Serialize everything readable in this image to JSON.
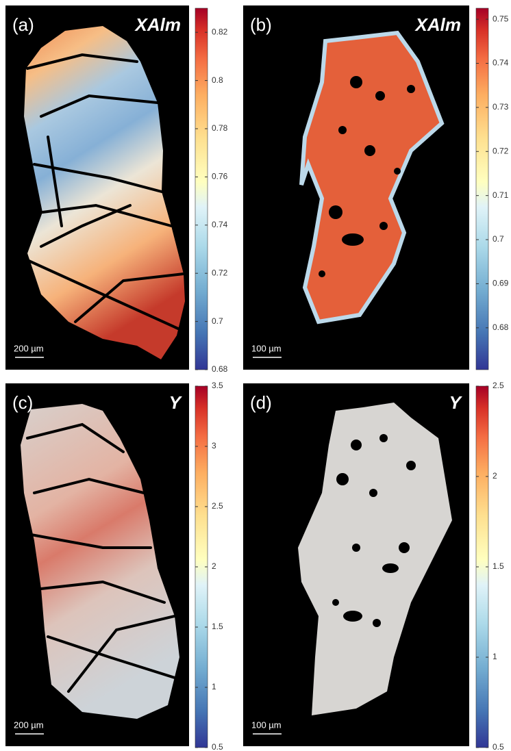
{
  "chart_data": [
    {
      "type": "heatmap",
      "panel_label": "(a)",
      "title": "XAlm",
      "scale_bar": "200 µm",
      "colormap": "RdYlBu_r",
      "clim": [
        0.68,
        0.83
      ],
      "cticks": [
        0.68,
        0.7,
        0.72,
        0.74,
        0.76,
        0.78,
        0.8,
        0.82
      ]
    },
    {
      "type": "heatmap",
      "panel_label": "(b)",
      "title": "XAlm",
      "scale_bar": "100 µm",
      "colormap": "RdYlBu_r",
      "clim": [
        0.6705,
        0.7525
      ],
      "cticks": [
        0.68,
        0.69,
        0.7,
        0.71,
        0.72,
        0.73,
        0.74,
        0.75
      ]
    },
    {
      "type": "heatmap",
      "panel_label": "(c)",
      "title": "Y",
      "scale_bar": "200 µm",
      "colormap": "RdYlBu_r",
      "clim": [
        0.5,
        3.5
      ],
      "cticks": [
        0.5,
        1,
        1.5,
        2,
        2.5,
        3,
        3.5
      ]
    },
    {
      "type": "heatmap",
      "panel_label": "(d)",
      "title": "Y",
      "scale_bar": "100 µm",
      "colormap": "RdYlBu_r",
      "clim": [
        0.5,
        2.5
      ],
      "cticks": [
        0.5,
        1,
        1.5,
        2,
        2.5
      ]
    }
  ]
}
